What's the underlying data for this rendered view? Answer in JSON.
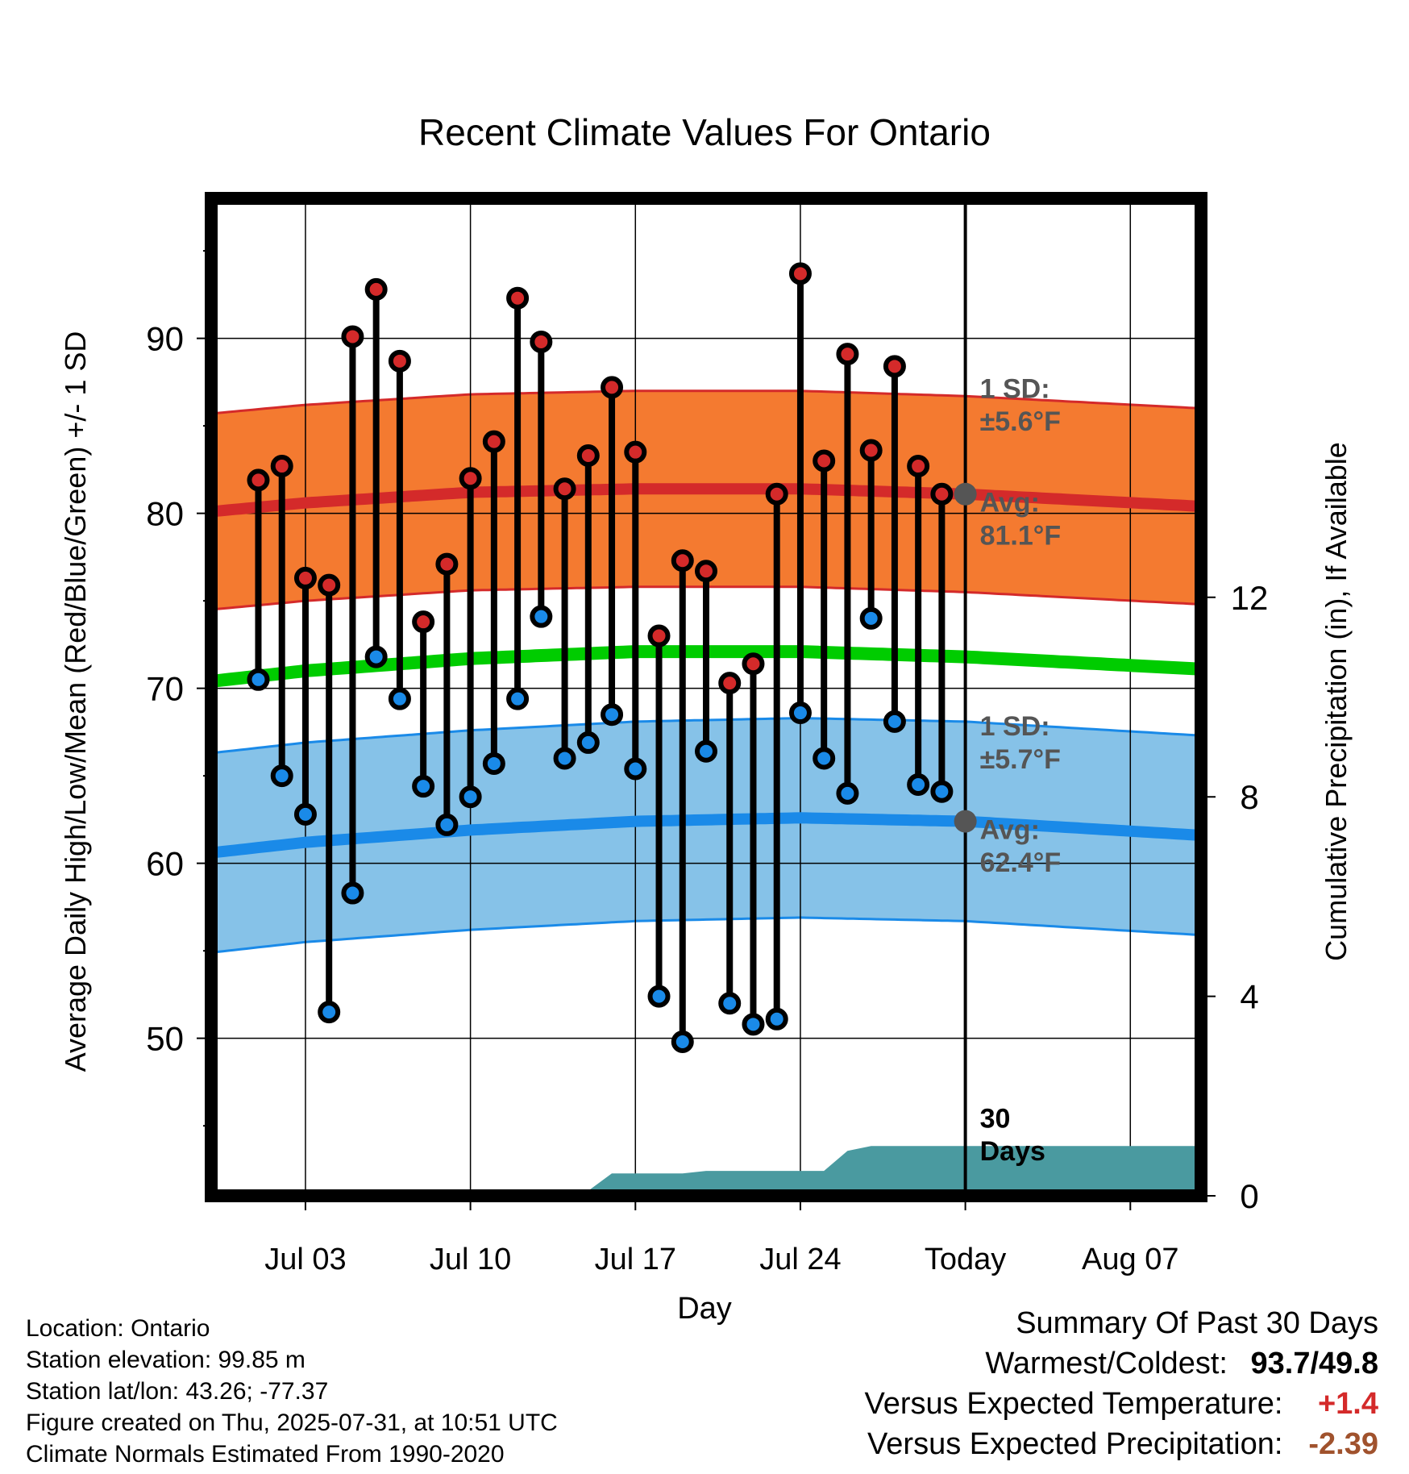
{
  "chart_data": {
    "type": "line",
    "title": "Recent Climate Values For Ontario",
    "xlabel": "Day",
    "ylabel": "Average Daily High/Low/Mean (Red/Blue/Green) +/- 1 SD",
    "y2label": "Cumulative Precipitation (in), If Available",
    "ylim": [
      41,
      98
    ],
    "y2lim": [
      0,
      20
    ],
    "yticks": [
      50,
      60,
      70,
      80,
      90
    ],
    "y2ticks": [
      0,
      4,
      8,
      12
    ],
    "xlim": [
      "2025-06-29",
      "2025-08-10"
    ],
    "x_tick_labels": [
      {
        "date": "2025-07-03",
        "label": "Jul 03"
      },
      {
        "date": "2025-07-10",
        "label": "Jul 10"
      },
      {
        "date": "2025-07-17",
        "label": "Jul 17"
      },
      {
        "date": "2025-07-24",
        "label": "Jul 24"
      },
      {
        "date": "2025-07-31",
        "label": "Today"
      },
      {
        "date": "2025-08-07",
        "label": "Aug 07"
      }
    ],
    "grid": true,
    "today": "2025-07-31",
    "period_label": "30\nDays",
    "observed": {
      "dates": [
        "2025-07-01",
        "2025-07-02",
        "2025-07-03",
        "2025-07-04",
        "2025-07-05",
        "2025-07-06",
        "2025-07-07",
        "2025-07-08",
        "2025-07-09",
        "2025-07-10",
        "2025-07-11",
        "2025-07-12",
        "2025-07-13",
        "2025-07-14",
        "2025-07-15",
        "2025-07-16",
        "2025-07-17",
        "2025-07-18",
        "2025-07-19",
        "2025-07-20",
        "2025-07-21",
        "2025-07-22",
        "2025-07-23",
        "2025-07-24",
        "2025-07-25",
        "2025-07-26",
        "2025-07-27",
        "2025-07-28",
        "2025-07-29",
        "2025-07-30"
      ],
      "highs": [
        81.9,
        82.7,
        76.3,
        75.9,
        90.1,
        92.8,
        88.7,
        73.8,
        77.1,
        82.0,
        84.1,
        92.3,
        89.8,
        81.4,
        83.3,
        87.2,
        83.5,
        73.0,
        77.3,
        76.7,
        70.3,
        71.4,
        81.1,
        93.7,
        83.0,
        89.1,
        83.6,
        88.4,
        82.7,
        81.1
      ],
      "lows": [
        70.5,
        65.0,
        62.8,
        51.5,
        58.3,
        71.8,
        69.4,
        64.4,
        62.2,
        63.8,
        65.7,
        69.4,
        74.1,
        66.0,
        66.9,
        68.5,
        65.4,
        52.4,
        49.8,
        66.4,
        52.0,
        50.8,
        51.1,
        68.6,
        66.0,
        64.0,
        74.0,
        68.1,
        64.5,
        64.1
      ]
    },
    "normals": {
      "dates": [
        "2025-06-29",
        "2025-07-03",
        "2025-07-10",
        "2025-07-17",
        "2025-07-24",
        "2025-07-31",
        "2025-08-10"
      ],
      "avg_high": [
        80.1,
        80.6,
        81.2,
        81.4,
        81.4,
        81.1,
        80.4
      ],
      "avg_low": [
        60.6,
        61.2,
        61.9,
        62.4,
        62.6,
        62.4,
        61.6
      ],
      "avg_mean": [
        70.4,
        71.0,
        71.7,
        72.1,
        72.1,
        71.8,
        71.1
      ],
      "high_sd": 5.6,
      "low_sd": 5.7
    },
    "precipitation": {
      "dates": [
        "2025-06-29",
        "2025-07-12",
        "2025-07-13",
        "2025-07-15",
        "2025-07-16",
        "2025-07-19",
        "2025-07-20",
        "2025-07-25",
        "2025-07-26",
        "2025-07-27",
        "2025-08-10"
      ],
      "cumulative": [
        0,
        0,
        0.1,
        0.1,
        0.45,
        0.45,
        0.5,
        0.5,
        0.9,
        1.0,
        1.0
      ]
    },
    "annotations": {
      "high_sd_label": "1 SD:\n±5.6°F",
      "high_avg_label": "Avg:\n81.1°F",
      "low_sd_label": "1 SD:\n±5.7°F",
      "low_avg_label": "Avg:\n62.4°F"
    },
    "colors": {
      "high_band": "#f47a30",
      "high_line": "#d42a2a",
      "low_band": "#86c2e8",
      "low_line": "#1a8ae8",
      "mean_line": "#00cc00",
      "precip": "#4a9aa0",
      "high_marker": "#d42a2a",
      "low_marker": "#1a8ae8",
      "annotation_text": "#555555"
    }
  },
  "footer": {
    "location": "Location: Ontario",
    "elevation": "Station elevation: 99.85 m",
    "latlon": "Station lat/lon: 43.26; -77.37",
    "created": "Figure created on Thu, 2025-07-31, at 10:51 UTC",
    "normals": "Climate Normals Estimated From 1990-2020"
  },
  "summary": {
    "title": "Summary Of Past 30 Days",
    "warm_cold_label": "Warmest/Coldest:",
    "warm_cold_value": "93.7/49.8",
    "temp_label": "Versus Expected Temperature:",
    "temp_value": "+1.4",
    "temp_color": "#d42a2a",
    "precip_label": "Versus Expected Precipitation:",
    "precip_value": "-2.39",
    "precip_color": "#a0522d"
  }
}
